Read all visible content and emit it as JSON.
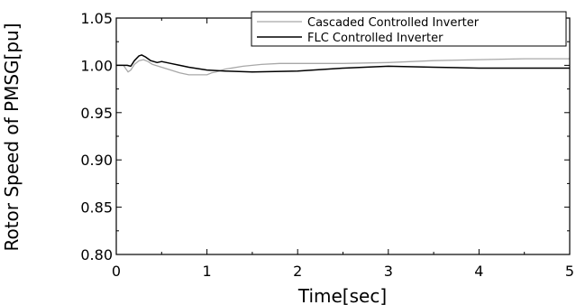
{
  "chart_data": {
    "type": "line",
    "title": "",
    "xlabel": "Time[sec]",
    "ylabel": "Rotor Speed of PMSG[pu]",
    "xlim": [
      0,
      5
    ],
    "ylim": [
      0.8,
      1.05
    ],
    "xticks": [
      "0",
      "1",
      "2",
      "3",
      "4",
      "5"
    ],
    "yticks": [
      "0.80",
      "0.85",
      "0.90",
      "0.95",
      "1.00",
      "1.05"
    ],
    "grid": false,
    "legend_position": "top-right",
    "series": [
      {
        "name": "Cascaded Controlled Inverter",
        "color": "#a8a8a8",
        "x": [
          0,
          0.08,
          0.1,
          0.13,
          0.16,
          0.2,
          0.25,
          0.3,
          0.35,
          0.4,
          0.5,
          0.6,
          0.7,
          0.8,
          0.9,
          1.0,
          1.05,
          1.1,
          1.2,
          1.4,
          1.6,
          1.8,
          2.0,
          2.5,
          3.0,
          3.5,
          4.0,
          4.5,
          5.0
        ],
        "y": [
          1.0,
          1.0,
          0.997,
          0.993,
          0.995,
          1.001,
          1.005,
          1.006,
          1.004,
          1.001,
          0.998,
          0.995,
          0.992,
          0.99,
          0.99,
          0.99,
          0.992,
          0.993,
          0.996,
          0.999,
          1.001,
          1.002,
          1.002,
          1.002,
          1.003,
          1.005,
          1.006,
          1.007,
          1.007
        ]
      },
      {
        "name": "FLC Controlled Inverter",
        "color": "#000000",
        "x": [
          0,
          0.08,
          0.12,
          0.16,
          0.2,
          0.25,
          0.28,
          0.32,
          0.38,
          0.45,
          0.5,
          0.6,
          0.7,
          0.8,
          1.0,
          1.2,
          1.5,
          2.0,
          2.5,
          3.0,
          3.5,
          4.0,
          4.5,
          5.0
        ],
        "y": [
          1.0,
          1.0,
          1.0,
          0.999,
          1.005,
          1.01,
          1.011,
          1.009,
          1.005,
          1.003,
          1.004,
          1.002,
          1.0,
          0.998,
          0.995,
          0.994,
          0.993,
          0.994,
          0.997,
          0.999,
          0.998,
          0.997,
          0.997,
          0.997
        ]
      }
    ]
  }
}
